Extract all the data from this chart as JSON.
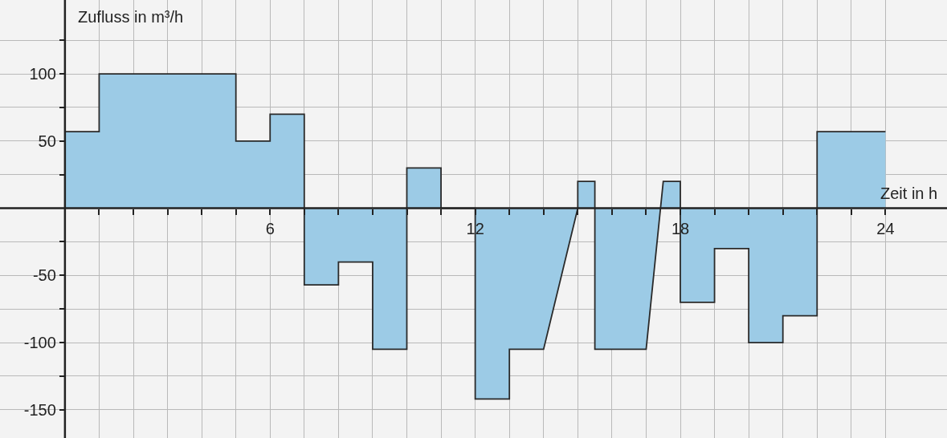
{
  "chart_data": {
    "type": "area",
    "xlabel": "Zeit in h",
    "ylabel": "Zufluss in m³/h",
    "series": [
      {
        "color": "#9ccbe6",
        "x": [
          0,
          1,
          1,
          5,
          5,
          6,
          6,
          7,
          7,
          8,
          8,
          9,
          9,
          10,
          10,
          11,
          11,
          12,
          12,
          13,
          13,
          14,
          15,
          15,
          15.5,
          15.5,
          17,
          17.5,
          18,
          18,
          19,
          19,
          20,
          20,
          21,
          21,
          22,
          22,
          24
        ],
        "values": [
          57,
          57,
          100,
          100,
          50,
          50,
          70,
          70,
          -57,
          -57,
          -40,
          -40,
          -105,
          -105,
          30,
          30,
          0,
          0,
          -142,
          -142,
          -105,
          -105,
          0,
          20,
          20,
          -105,
          -105,
          20,
          20,
          -70,
          -70,
          -30,
          -30,
          -100,
          -100,
          -80,
          -80,
          57,
          57
        ]
      }
    ],
    "xlim": [
      -1.9,
      25.8
    ],
    "ylim": [
      -171,
      155
    ],
    "xticks": [
      {
        "value": 1,
        "label": null
      },
      {
        "value": 2,
        "label": null
      },
      {
        "value": 3,
        "label": null
      },
      {
        "value": 4,
        "label": null
      },
      {
        "value": 5,
        "label": null
      },
      6,
      {
        "value": 7,
        "label": null
      },
      {
        "value": 8,
        "label": null
      },
      {
        "value": 9,
        "label": null
      },
      {
        "value": 10,
        "label": null
      },
      {
        "value": 11,
        "label": null
      },
      12,
      {
        "value": 13,
        "label": null
      },
      {
        "value": 14,
        "label": null
      },
      {
        "value": 15,
        "label": null
      },
      {
        "value": 16,
        "label": null
      },
      {
        "value": 17,
        "label": null
      },
      18,
      {
        "value": 19,
        "label": null
      },
      {
        "value": 20,
        "label": null
      },
      {
        "value": 21,
        "label": null
      },
      {
        "value": 22,
        "label": null
      },
      {
        "value": 23,
        "label": null
      },
      24
    ],
    "yticks": [
      {
        "value": 125,
        "label": null
      },
      100,
      {
        "value": 75,
        "label": null
      },
      50,
      {
        "value": 25,
        "label": null
      },
      {
        "value": -25,
        "label": null
      },
      -50,
      {
        "value": -75,
        "label": null
      },
      -100,
      {
        "value": -125,
        "label": null
      },
      -150
    ],
    "grid": true,
    "line_style": "solid",
    "marker": "none"
  }
}
